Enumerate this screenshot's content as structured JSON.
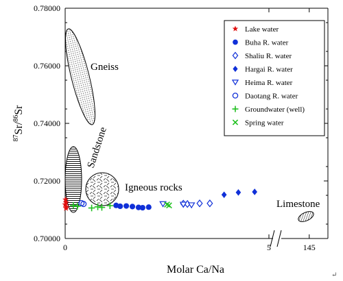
{
  "chart_data": {
    "type": "scatter",
    "title": "",
    "xlabel": "Molar Ca/Na",
    "ylabel": "87Sr/86Sr",
    "ylabel_parts": {
      "sup1": "87",
      "base1": "Sr/",
      "sup2": "86",
      "base2": "Sr"
    },
    "y_axis": {
      "range": [
        0.7,
        0.78
      ],
      "ticks": [
        "0.70000",
        "0.72000",
        "0.74000",
        "0.76000",
        "0.78000"
      ],
      "tick_values": [
        0.7,
        0.72,
        0.74,
        0.76,
        0.78
      ]
    },
    "x_axis": {
      "break": true,
      "segments": [
        {
          "range": [
            0,
            5.0
          ],
          "ticks": [
            "0",
            "5"
          ],
          "tick_values": [
            0,
            5
          ]
        },
        {
          "range": [
            130,
            155
          ],
          "ticks": [
            "145"
          ],
          "tick_values": [
            145
          ]
        }
      ]
    },
    "legend": {
      "position": "top-right",
      "entries": [
        {
          "name": "Lake water",
          "marker": "star",
          "color": "#e01010"
        },
        {
          "name": "Buha R. water",
          "marker": "filled-circle",
          "color": "#1030d8"
        },
        {
          "name": "Shaliu R. water",
          "marker": "open-diamond",
          "color": "#1030d8"
        },
        {
          "name": "Hargai R. water",
          "marker": "filled-diamond",
          "color": "#1030d8"
        },
        {
          "name": "Heima R. water",
          "marker": "open-triangle-down",
          "color": "#1030d8"
        },
        {
          "name": "Daotang R. water",
          "marker": "open-circle",
          "color": "#1030d8"
        },
        {
          "name": "Groundwater (well)",
          "marker": "plus",
          "color": "#20c020"
        },
        {
          "name": "Spring water",
          "marker": "cross",
          "color": "#20c020"
        }
      ]
    },
    "series": [
      {
        "name": "Lake water",
        "points": [
          [
            0.01,
            0.7135
          ],
          [
            0.02,
            0.7125
          ],
          [
            0.0,
            0.7118
          ],
          [
            0.03,
            0.711
          ],
          [
            0.02,
            0.7105
          ]
        ]
      },
      {
        "name": "Buha R. water",
        "points": [
          [
            1.25,
            0.7115
          ],
          [
            1.35,
            0.7112
          ],
          [
            1.5,
            0.7113
          ],
          [
            1.65,
            0.7111
          ],
          [
            1.8,
            0.7108
          ],
          [
            1.9,
            0.7107
          ],
          [
            2.05,
            0.7109
          ]
        ]
      },
      {
        "name": "Shaliu R. water",
        "points": [
          [
            2.9,
            0.7121
          ],
          [
            3.0,
            0.712
          ],
          [
            3.3,
            0.7122
          ],
          [
            3.55,
            0.7122
          ]
        ]
      },
      {
        "name": "Hargai R. water",
        "points": [
          [
            3.9,
            0.7152
          ],
          [
            4.25,
            0.716
          ],
          [
            4.65,
            0.7162
          ]
        ]
      },
      {
        "name": "Heima R. water",
        "points": [
          [
            2.4,
            0.712
          ],
          [
            2.9,
            0.7118
          ],
          [
            3.1,
            0.7116
          ]
        ]
      },
      {
        "name": "Daotang R. water",
        "points": [
          [
            0.4,
            0.7123
          ],
          [
            0.45,
            0.712
          ]
        ]
      },
      {
        "name": "Groundwater (well)",
        "points": [
          [
            0.2,
            0.7115
          ],
          [
            0.3,
            0.7112
          ],
          [
            0.65,
            0.7106
          ],
          [
            0.8,
            0.711
          ],
          [
            0.9,
            0.7108
          ],
          [
            1.1,
            0.7114
          ]
        ]
      },
      {
        "name": "Spring water",
        "points": [
          [
            2.5,
            0.7118
          ],
          [
            2.55,
            0.7115
          ]
        ]
      }
    ],
    "regions": [
      {
        "name": "Gneiss",
        "label": "Gneiss",
        "fill": "hatch-dots"
      },
      {
        "name": "Sandstone",
        "label": "Sandstone",
        "fill": "horizontal-lines"
      },
      {
        "name": "Igneous rocks",
        "label": "Igneous rocks",
        "fill": "cross-hatch"
      },
      {
        "name": "Limestone",
        "label": "Limestone",
        "fill": "diagonal-lines"
      }
    ]
  }
}
